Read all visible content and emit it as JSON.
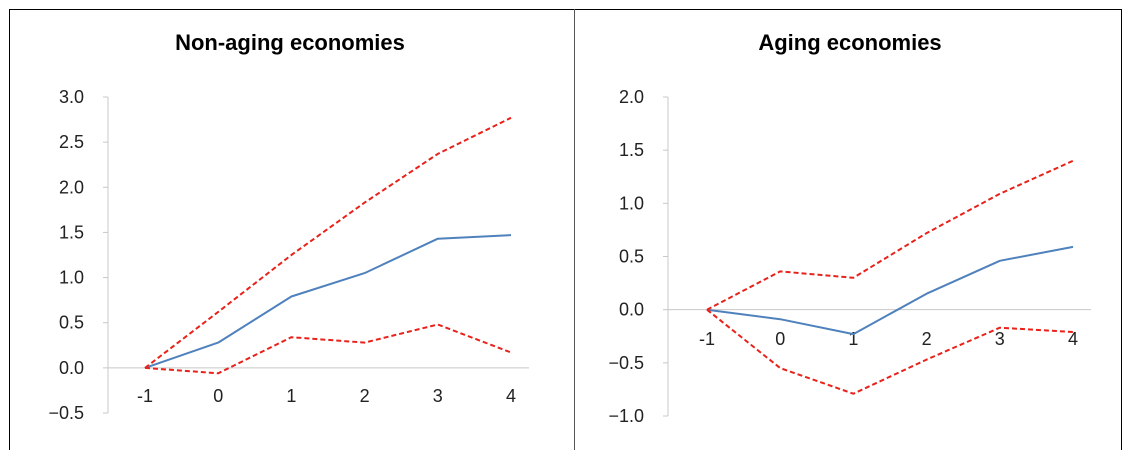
{
  "chart_data": [
    {
      "type": "line",
      "title": "Non-aging economies",
      "x": [
        -1,
        0,
        1,
        2,
        3,
        4
      ],
      "x_tick_labels": [
        "-1",
        "0",
        "1",
        "2",
        "3",
        "4"
      ],
      "y_tick_labels": [
        "3.0",
        "2.5",
        "2.0",
        "1.5",
        "1.0",
        "0.5",
        "0.0",
        "−0.5"
      ],
      "ylim": [
        -0.5,
        3.0
      ],
      "series": [
        {
          "role": "estimate",
          "color": "#4f81bd",
          "style": "solid",
          "values": [
            0.0,
            0.28,
            0.79,
            1.05,
            1.43,
            1.47
          ]
        },
        {
          "role": "upper",
          "color": "#e8221b",
          "style": "dashed",
          "values": [
            0.0,
            0.62,
            1.25,
            1.83,
            2.37,
            2.77
          ]
        },
        {
          "role": "lower",
          "color": "#e8221b",
          "style": "dashed",
          "values": [
            0.0,
            -0.06,
            0.34,
            0.28,
            0.48,
            0.17
          ]
        }
      ]
    },
    {
      "type": "line",
      "title": "Aging economies",
      "x": [
        -1,
        0,
        1,
        2,
        3,
        4
      ],
      "x_tick_labels": [
        "-1",
        "0",
        "1",
        "2",
        "3",
        "4"
      ],
      "y_tick_labels": [
        "2.0",
        "1.5",
        "1.0",
        "0.5",
        "0.0",
        "−0.5",
        "−1.0"
      ],
      "ylim": [
        -1.0,
        2.0
      ],
      "series": [
        {
          "role": "estimate",
          "color": "#4f81bd",
          "style": "solid",
          "values": [
            0.0,
            -0.09,
            -0.23,
            0.15,
            0.46,
            0.59
          ]
        },
        {
          "role": "upper",
          "color": "#e8221b",
          "style": "dashed",
          "values": [
            0.0,
            0.36,
            0.3,
            0.72,
            1.09,
            1.4
          ]
        },
        {
          "role": "lower",
          "color": "#e8221b",
          "style": "dashed",
          "values": [
            0.0,
            -0.55,
            -0.79,
            -0.47,
            -0.17,
            -0.21
          ]
        }
      ]
    }
  ]
}
